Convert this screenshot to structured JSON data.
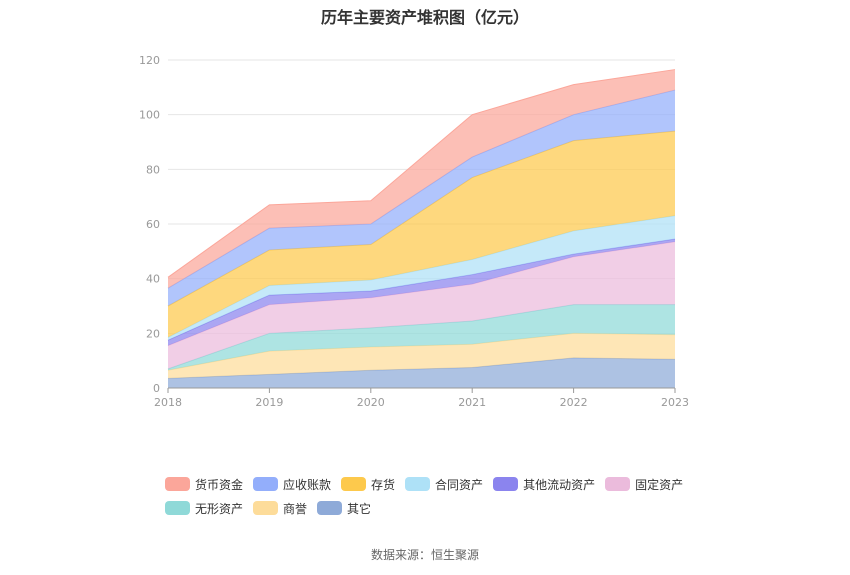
{
  "title": "历年主要资产堆积图（亿元）",
  "source": "数据来源：恒生聚源",
  "chart_data": {
    "type": "area",
    "stacked": true,
    "title": "历年主要资产堆积图（亿元）",
    "x": [
      "2018",
      "2019",
      "2020",
      "2021",
      "2022",
      "2023"
    ],
    "yticks": [
      "0",
      "20",
      "40",
      "60",
      "80",
      "100",
      "120"
    ],
    "ylim": [
      0,
      120
    ],
    "grid": true,
    "legend_position": "bottom",
    "series": [
      {
        "name": "其它",
        "color": "#8eaad8",
        "values": [
          3.5,
          5.0,
          6.5,
          7.5,
          11.0,
          10.5
        ]
      },
      {
        "name": "商誉",
        "color": "#fddc9a",
        "values": [
          3.0,
          8.5,
          8.5,
          8.5,
          9.0,
          9.0
        ]
      },
      {
        "name": "无形资产",
        "color": "#8fd9d8",
        "values": [
          0.5,
          6.5,
          7.0,
          8.5,
          10.5,
          11.0
        ]
      },
      {
        "name": "固定资产",
        "color": "#ebbbdc",
        "values": [
          8.5,
          10.5,
          11.0,
          13.5,
          17.5,
          23.0
        ]
      },
      {
        "name": "其他流动资产",
        "color": "#8b84ee",
        "values": [
          2.0,
          3.5,
          2.5,
          3.5,
          1.0,
          1.0
        ]
      },
      {
        "name": "合同资产",
        "color": "#aee1f7",
        "values": [
          1.0,
          3.5,
          4.0,
          5.5,
          8.5,
          8.5
        ]
      },
      {
        "name": "存货",
        "color": "#fdc94c",
        "values": [
          11.5,
          13.0,
          13.0,
          30.0,
          33.0,
          31.0
        ]
      },
      {
        "name": "应收账款",
        "color": "#93aefb",
        "values": [
          6.5,
          8.0,
          7.5,
          7.5,
          9.5,
          15.0
        ]
      },
      {
        "name": "货币资金",
        "color": "#fba69a",
        "values": [
          4.0,
          8.5,
          8.5,
          15.5,
          11.0,
          7.5
        ]
      }
    ]
  },
  "legend_rows": [
    [
      {
        "name": "货币资金",
        "color": "#fba69a"
      },
      {
        "name": "应收账款",
        "color": "#93aefb"
      },
      {
        "name": "存货",
        "color": "#fdc94c"
      },
      {
        "name": "合同资产",
        "color": "#aee1f7"
      },
      {
        "name": "其他流动资产",
        "color": "#8b84ee"
      },
      {
        "name": "固定资产",
        "color": "#ebbbdc"
      }
    ],
    [
      {
        "name": "无形资产",
        "color": "#8fd9d8"
      },
      {
        "name": "商誉",
        "color": "#fddc9a"
      },
      {
        "name": "其它",
        "color": "#8eaad8"
      }
    ]
  ]
}
